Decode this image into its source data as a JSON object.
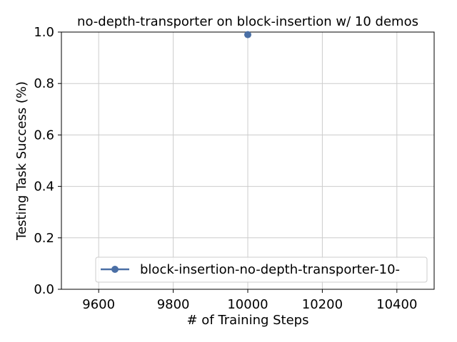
{
  "chart_data": {
    "type": "line",
    "title": "no-depth-transporter on block-insertion w/ 10 demos",
    "xlabel": "# of Training Steps",
    "ylabel": "Testing Task Success (%)",
    "xlim": [
      9500,
      10500
    ],
    "ylim": [
      0.0,
      1.0
    ],
    "xticks": [
      9600,
      9800,
      10000,
      10200,
      10400
    ],
    "yticks": [
      0.0,
      0.2,
      0.4,
      0.6,
      0.8,
      1.0
    ],
    "xtick_labels": [
      "9600",
      "9800",
      "10000",
      "10200",
      "10400"
    ],
    "ytick_labels": [
      "0.0",
      "0.2",
      "0.4",
      "0.6",
      "0.8",
      "1.0"
    ],
    "grid": true,
    "legend_position": "lower-right",
    "series": [
      {
        "name": "block-insertion-no-depth-transporter-10-",
        "color": "#4a6fa5",
        "marker": "circle",
        "x": [
          10000
        ],
        "y": [
          0.99
        ]
      }
    ]
  }
}
